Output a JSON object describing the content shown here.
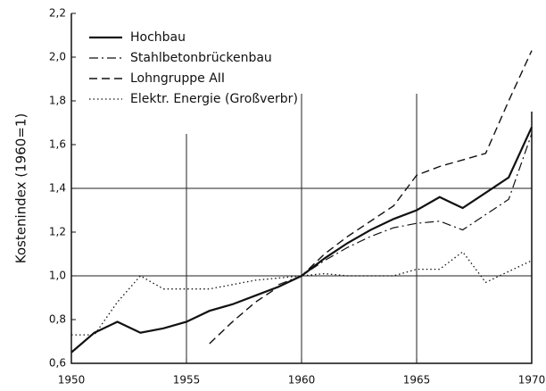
{
  "chart_data": {
    "type": "line",
    "y_label": "Kostenindex (1960=1)",
    "x": [
      1950,
      1951,
      1952,
      1953,
      1954,
      1955,
      1956,
      1957,
      1958,
      1959,
      1960,
      1961,
      1962,
      1963,
      1964,
      1965,
      1966,
      1967,
      1968,
      1969,
      1970
    ],
    "series": [
      {
        "name": "Hochbau",
        "color": "#111",
        "dash": "solid",
        "values": [
          0.65,
          0.74,
          0.79,
          0.74,
          0.76,
          0.79,
          0.84,
          0.87,
          0.91,
          0.95,
          1.0,
          1.08,
          1.15,
          1.21,
          1.26,
          1.3,
          1.36,
          1.31,
          1.38,
          1.45,
          1.68
        ]
      },
      {
        "name": "Stahlbetonbrückenbau",
        "color": "#111",
        "dash": "dashdot",
        "values": [
          null,
          null,
          null,
          null,
          null,
          null,
          null,
          null,
          null,
          0.96,
          1.0,
          1.07,
          1.13,
          1.18,
          1.22,
          1.24,
          1.25,
          1.21,
          1.28,
          1.35,
          1.65
        ]
      },
      {
        "name": "Lohngruppe AII",
        "color": "#111",
        "dash": "dashed",
        "values": [
          null,
          null,
          null,
          null,
          null,
          null,
          0.69,
          0.79,
          0.88,
          0.95,
          1.0,
          1.1,
          1.18,
          1.25,
          1.32,
          1.46,
          1.5,
          1.53,
          1.56,
          1.8,
          2.03
        ]
      },
      {
        "name": "Elektr. Energie (Großverbr)",
        "color": "#111",
        "dash": "dotted",
        "values": [
          0.73,
          0.73,
          0.88,
          1.0,
          0.94,
          0.94,
          0.94,
          0.96,
          0.98,
          0.99,
          1.0,
          1.01,
          1.0,
          1.0,
          1.0,
          1.03,
          1.03,
          1.11,
          0.97,
          1.02,
          1.07
        ]
      }
    ],
    "xlim": [
      1950,
      1970
    ],
    "xticks": [
      1950,
      1955,
      1960,
      1965,
      1970
    ],
    "ylim": [
      0.6,
      2.2
    ],
    "yticks": [
      {
        "value": 0.6,
        "label": "0,6"
      },
      {
        "value": 0.8,
        "label": "0,8"
      },
      {
        "value": 1.0,
        "label": "1,0"
      },
      {
        "value": 1.2,
        "label": "1,2"
      },
      {
        "value": 1.4,
        "label": "1,4"
      },
      {
        "value": 1.6,
        "label": "1,6"
      },
      {
        "value": 1.8,
        "label": "1,8"
      },
      {
        "value": 2.0,
        "label": "2,0"
      },
      {
        "value": 2.2,
        "label": "2,2"
      }
    ],
    "xgrid": [
      1955,
      1960,
      1965
    ],
    "ygrid": [
      1.0,
      1.4
    ],
    "legend": "upper left"
  }
}
